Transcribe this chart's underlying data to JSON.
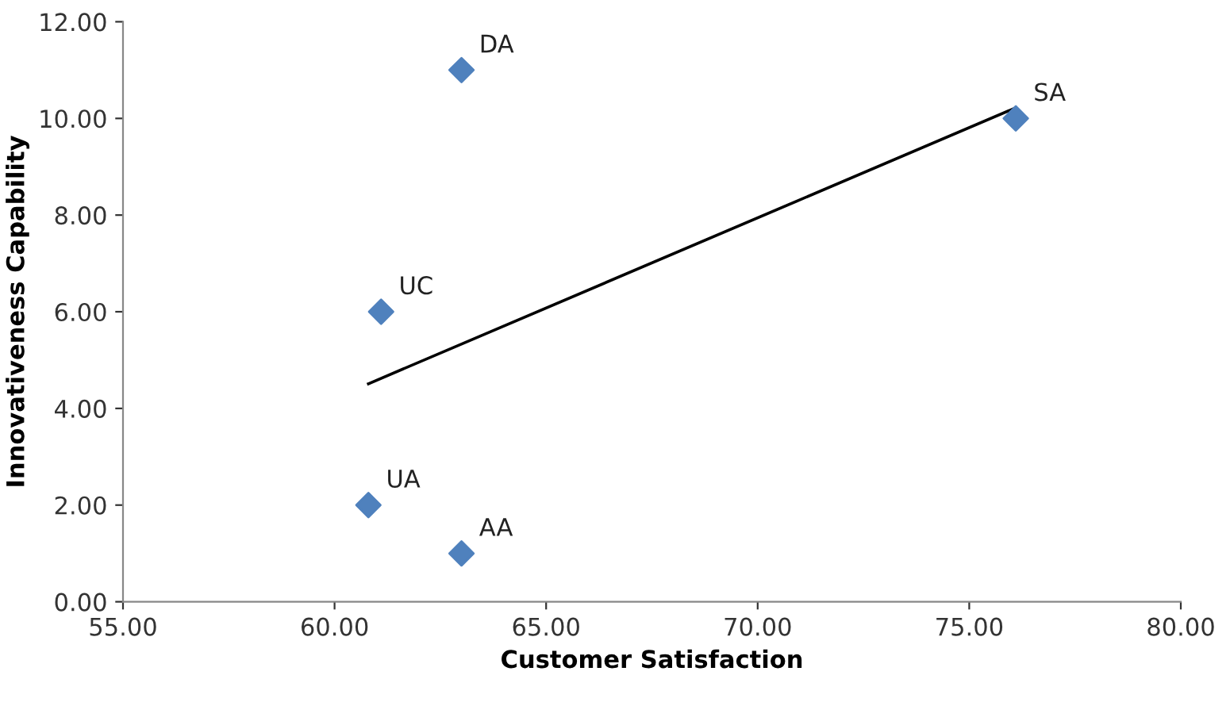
{
  "chart_data": {
    "type": "scatter",
    "xlabel": "Customer Satisfaction",
    "ylabel": "Innovativeness Capability",
    "series": [
      {
        "type": "scatter",
        "color": "#4f81bd",
        "marker": "diamond",
        "x": [
          60.8,
          63.0,
          61.1,
          63.0,
          76.1
        ],
        "values": [
          2,
          1,
          6,
          11,
          10
        ]
      },
      {
        "type": "line",
        "color": "#000000",
        "marker": "none",
        "x": [
          60.8,
          76.1
        ],
        "values": [
          4.51,
          10.22
        ]
      }
    ],
    "annotations": [
      {
        "text": "UA",
        "x": 60.8,
        "y": 2
      },
      {
        "text": "AA",
        "x": 63.0,
        "y": 1
      },
      {
        "text": "UC",
        "x": 61.1,
        "y": 6
      },
      {
        "text": "DA",
        "x": 63.0,
        "y": 11
      },
      {
        "text": "SA",
        "x": 76.1,
        "y": 10
      }
    ],
    "xlim": [
      55,
      80
    ],
    "ylim": [
      0,
      12
    ],
    "xticks": [
      {
        "value": 55,
        "label": "55.00"
      },
      {
        "value": 60,
        "label": "60.00"
      },
      {
        "value": 65,
        "label": "65.00"
      },
      {
        "value": 70,
        "label": "70.00"
      },
      {
        "value": 75,
        "label": "75.00"
      },
      {
        "value": 80,
        "label": "80.00"
      }
    ],
    "yticks": [
      {
        "value": 0,
        "label": "0.00"
      },
      {
        "value": 2,
        "label": "2.00"
      },
      {
        "value": 4,
        "label": "4.00"
      },
      {
        "value": 6,
        "label": "6.00"
      },
      {
        "value": 8,
        "label": "8.00"
      },
      {
        "value": 10,
        "label": "10.00"
      },
      {
        "value": 12,
        "label": "12.00"
      }
    ],
    "grid": false,
    "legend": false
  }
}
